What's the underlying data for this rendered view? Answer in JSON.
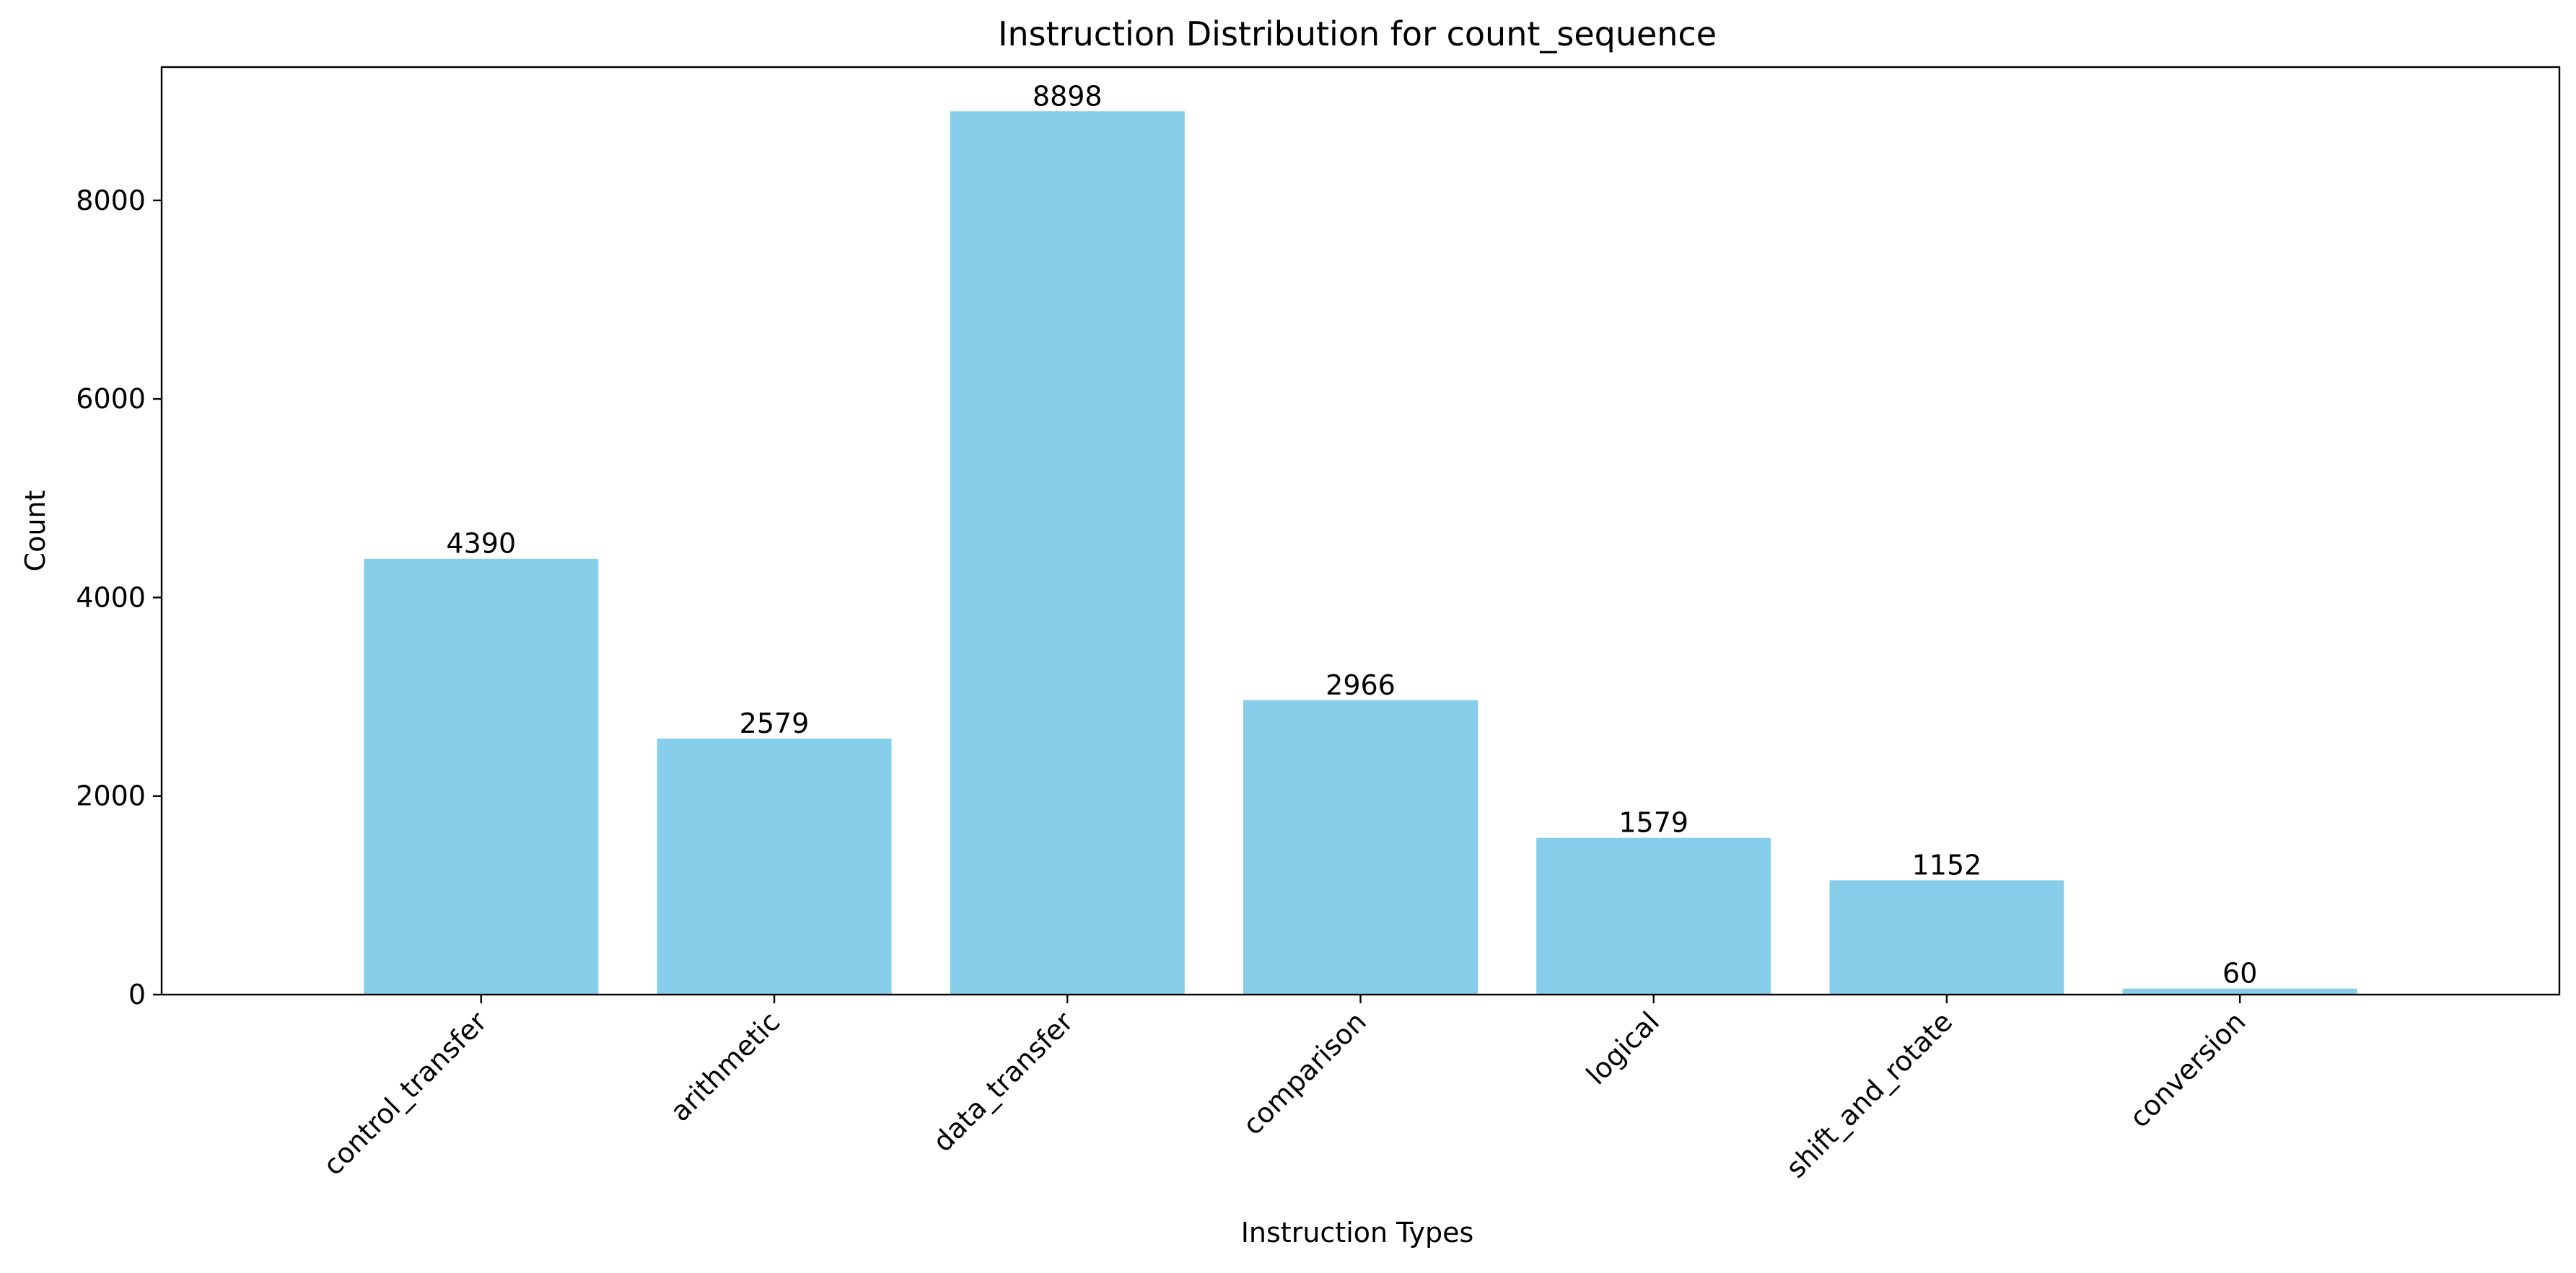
{
  "chart_data": {
    "type": "bar",
    "title": "Instruction Distribution for count_sequence",
    "xlabel": "Instruction Types",
    "ylabel": "Count",
    "categories": [
      "control_transfer",
      "arithmetic",
      "data_transfer",
      "comparison",
      "logical",
      "shift_and_rotate",
      "conversion"
    ],
    "values": [
      4390,
      2579,
      8898,
      2966,
      1579,
      1152,
      60
    ],
    "data_labels": [
      "4390",
      "2579",
      "8898",
      "2966",
      "1579",
      "1152",
      "60"
    ],
    "ylim": [
      0,
      9343
    ],
    "yticks": [
      0,
      2000,
      4000,
      6000,
      8000
    ],
    "ytick_labels": [
      "0",
      "2000",
      "4000",
      "6000",
      "8000"
    ],
    "bar_color": "#87CEEB",
    "grid": false,
    "legend": "none"
  }
}
